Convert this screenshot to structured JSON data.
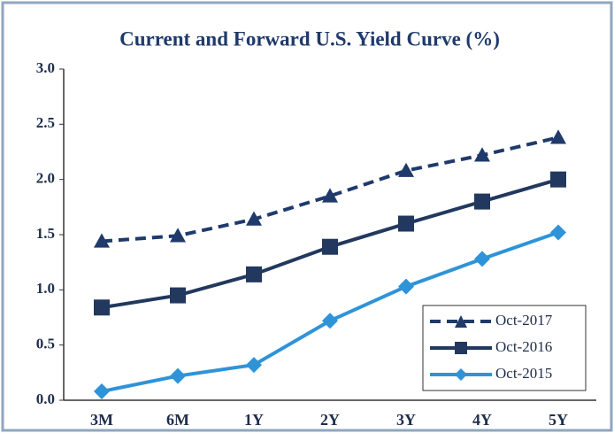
{
  "chart_data": {
    "type": "line",
    "title": "Current and Forward U.S. Yield Curve (%)",
    "categories": [
      "3M",
      "6M",
      "1Y",
      "2Y",
      "3Y",
      "4Y",
      "5Y"
    ],
    "series": [
      {
        "name": "Oct-2017",
        "color": "#1f3a6b",
        "dash": true,
        "marker": "triangle",
        "values": [
          1.44,
          1.49,
          1.64,
          1.85,
          2.08,
          2.22,
          2.38
        ]
      },
      {
        "name": "Oct-2016",
        "color": "#22385e",
        "dash": false,
        "marker": "square",
        "values": [
          0.84,
          0.95,
          1.14,
          1.39,
          1.6,
          1.8,
          2.0
        ]
      },
      {
        "name": "Oct-2015",
        "color": "#2f93d8",
        "dash": false,
        "marker": "diamond",
        "values": [
          0.08,
          0.22,
          0.32,
          0.72,
          1.03,
          1.28,
          1.52
        ]
      }
    ],
    "ylim": [
      0,
      3
    ],
    "yticks": [
      {
        "value": 0,
        "label": "0.0"
      },
      0.5,
      {
        "value": 1,
        "label": "1.0"
      },
      1.5,
      {
        "value": 2,
        "label": "2.0"
      },
      2.5,
      {
        "value": 3,
        "label": "3.0"
      }
    ],
    "grid": false,
    "legend": "lower right"
  }
}
